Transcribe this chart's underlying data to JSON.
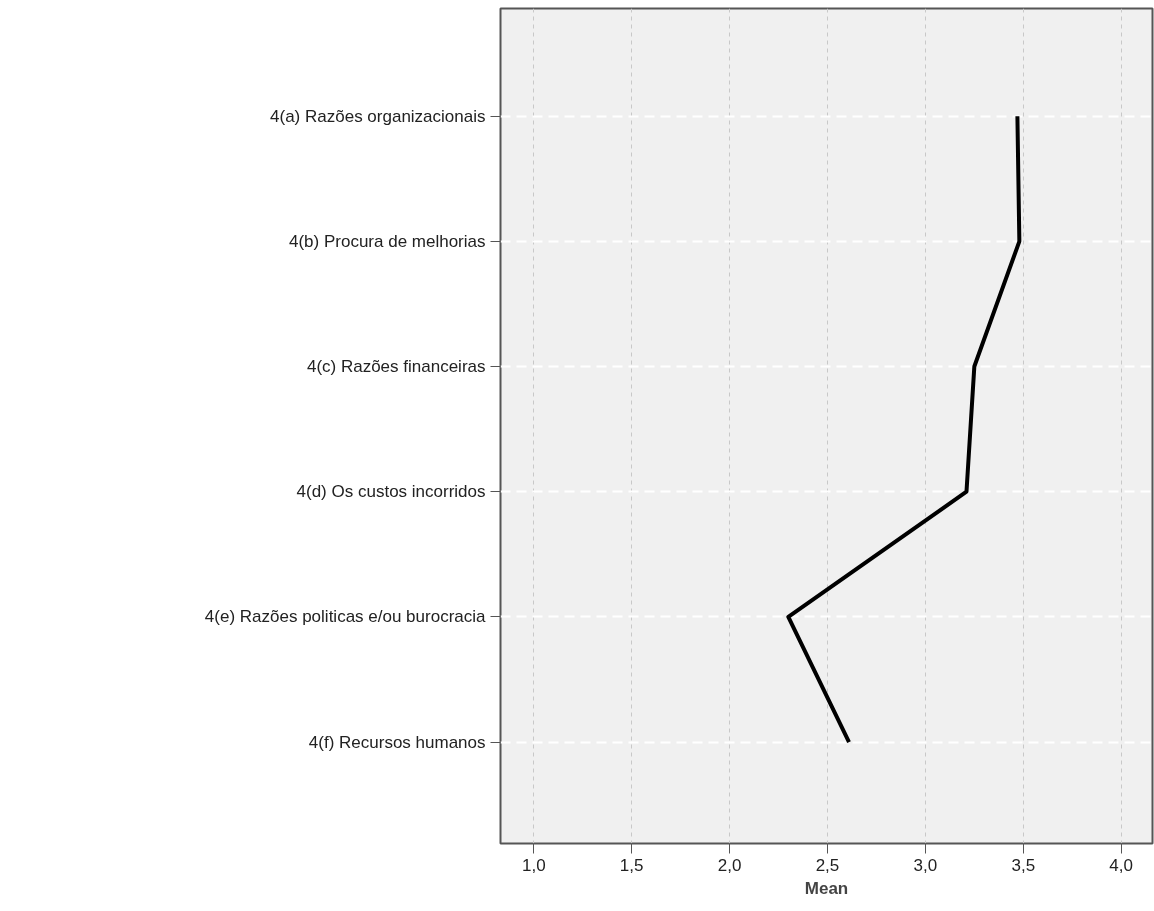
{
  "chart_data": {
    "type": "line",
    "orientation": "horizontal",
    "xlabel": "Mean",
    "categories": [
      "4(a) Razões organizacionais",
      "4(b) Procura de melhorias",
      "4(c) Razões financeiras",
      "4(d) Os custos incorridos",
      "4(e) Razões politicas e/ou burocracia",
      "4(f) Recursos humanos"
    ],
    "series": [
      {
        "color": "#000000",
        "values": [
          3.47,
          3.48,
          3.25,
          3.21,
          2.3,
          2.61
        ]
      }
    ],
    "xlim": [
      0.83,
      4.16
    ],
    "xticks": [
      {
        "value": 1,
        "label": "1,0"
      },
      {
        "value": 1.5,
        "label": "1,5"
      },
      {
        "value": 2,
        "label": "2,0"
      },
      {
        "value": 2.5,
        "label": "2,5"
      },
      {
        "value": 3,
        "label": "3,0"
      },
      {
        "value": 3.5,
        "label": "3,5"
      },
      {
        "value": 4,
        "label": "4,0"
      }
    ],
    "grid": true,
    "marker": "none",
    "line_style": "solid"
  }
}
